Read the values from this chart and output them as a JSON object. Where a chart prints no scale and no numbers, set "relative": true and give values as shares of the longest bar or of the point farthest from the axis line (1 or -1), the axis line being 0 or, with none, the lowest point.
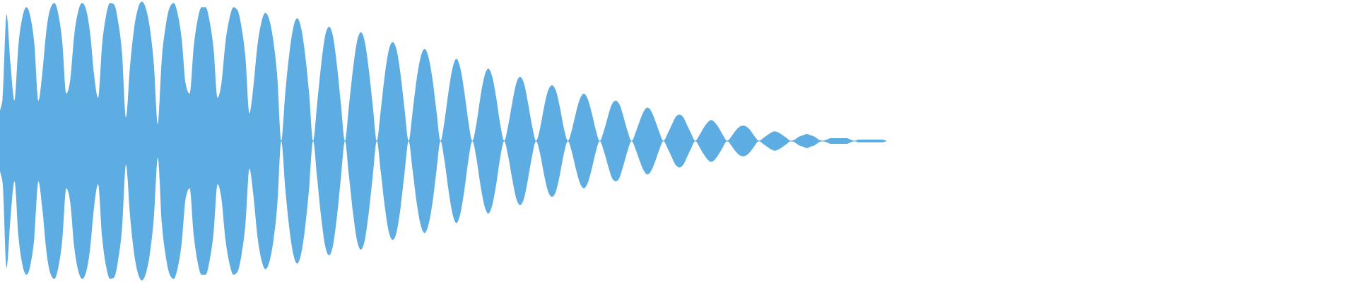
{
  "chart_data": {
    "type": "area",
    "relative": true,
    "categories": [
      null,
      null,
      null,
      null,
      null,
      null,
      null,
      null,
      null,
      null,
      null,
      null,
      null,
      null,
      null,
      null,
      null,
      null,
      null,
      null,
      null,
      null,
      null,
      null,
      null,
      null,
      null,
      null,
      null,
      null,
      null,
      null,
      null,
      null,
      null,
      null,
      null,
      null,
      null,
      null,
      null,
      null,
      null,
      null,
      null,
      null,
      null,
      null,
      null,
      null,
      null,
      null,
      null,
      null,
      null,
      null,
      null,
      null,
      null,
      null,
      null,
      null,
      null,
      null,
      null,
      null,
      null,
      null,
      null,
      null,
      null,
      null,
      null,
      null,
      null,
      null,
      null,
      null,
      null,
      null,
      null,
      null,
      null,
      null,
      null,
      null,
      null,
      null,
      null,
      null,
      null,
      null,
      null,
      null,
      null,
      null,
      null,
      null,
      null,
      null,
      null,
      null,
      null,
      null,
      null,
      null,
      null,
      null,
      null,
      null,
      null,
      null,
      null,
      null,
      null,
      null,
      null,
      null,
      null,
      null,
      null,
      null,
      null,
      null,
      null,
      null,
      null,
      null,
      null,
      null,
      null,
      null,
      null,
      null,
      null,
      null,
      null,
      null,
      null,
      null,
      null,
      null,
      null,
      null,
      null,
      null,
      null,
      null,
      null,
      null,
      null,
      null,
      null,
      null,
      null,
      null,
      null,
      null,
      null,
      null,
      null,
      null,
      null,
      null,
      null,
      null,
      null,
      null,
      null,
      null,
      null,
      null,
      null,
      null,
      null,
      null,
      null,
      null,
      null,
      null,
      null,
      null,
      null,
      null,
      null,
      null,
      null,
      null,
      null,
      null,
      null,
      null,
      null,
      null,
      null,
      null,
      null,
      null,
      null,
      null,
      null,
      null,
      null,
      null,
      null,
      null,
      null,
      null,
      null,
      null,
      null,
      null,
      null,
      null,
      null,
      null,
      null,
      null,
      null,
      null,
      null,
      null,
      null,
      null
    ],
    "series": [
      {
        "color": "#5dade2",
        "values": [
          0.2,
          0.3,
          0.91,
          0.55,
          0.29,
          0.69,
          0.89,
          0.96,
          0.89,
          0.69,
          0.29,
          0.49,
          0.79,
          0.95,
          0.99,
          0.91,
          0.71,
          0.34,
          0.44,
          0.76,
          0.93,
          0.99,
          0.94,
          0.77,
          0.47,
          0.31,
          0.69,
          0.9,
          0.99,
          0.98,
          0.86,
          0.63,
          0.17,
          0.53,
          0.8,
          0.95,
          1,
          0.95,
          0.81,
          0.55,
          0.12,
          0.59,
          0.83,
          0.96,
          0.99,
          0.91,
          0.73,
          0.41,
          0.34,
          0.67,
          0.87,
          0.96,
          0.96,
          0.86,
          0.66,
          0.31,
          0.42,
          0.71,
          0.88,
          0.96,
          0.94,
          0.82,
          0.6,
          0.2,
          0.39,
          0.68,
          0.85,
          0.92,
          0.87,
          0.72,
          0.46,
          0,
          0.34,
          0.62,
          0.81,
          0.88,
          0.81,
          0.62,
          0.34,
          0,
          0.26,
          0.54,
          0.75,
          0.82,
          0.75,
          0.54,
          0.26,
          0,
          0.25,
          0.51,
          0.71,
          0.78,
          0.71,
          0.51,
          0.25,
          0,
          0.22,
          0.47,
          0.65,
          0.71,
          0.65,
          0.47,
          0.22,
          0,
          0.21,
          0.44,
          0.6,
          0.66,
          0.6,
          0.44,
          0.21,
          0,
          0.14,
          0.35,
          0.52,
          0.59,
          0.52,
          0.35,
          0.14,
          0,
          0.12,
          0.31,
          0.46,
          0.52,
          0.46,
          0.31,
          0.12,
          0,
          0.11,
          0.27,
          0.41,
          0.46,
          0.41,
          0.27,
          0.11,
          0,
          0.09,
          0.24,
          0.36,
          0.4,
          0.36,
          0.24,
          0.09,
          0,
          0.08,
          0.2,
          0.3,
          0.34,
          0.3,
          0.2,
          0.08,
          0,
          0.07,
          0.17,
          0.26,
          0.29,
          0.26,
          0.17,
          0.07,
          0,
          0.06,
          0.14,
          0.21,
          0.24,
          0.21,
          0.14,
          0.06,
          0,
          0.05,
          0.11,
          0.17,
          0.19,
          0.17,
          0.11,
          0.05,
          0,
          0.04,
          0.09,
          0.13,
          0.15,
          0.13,
          0.09,
          0.04,
          0,
          0.03,
          0.07,
          0.1,
          0.11,
          0.1,
          0.07,
          0.03,
          0,
          0.02,
          0.04,
          0.06,
          0.07,
          0.06,
          0.04,
          0.02,
          0,
          0.01,
          0.03,
          0.04,
          0.05,
          0.04,
          0.03,
          0.01,
          0,
          0.01,
          0.02,
          0.02,
          0.02,
          0.02,
          0.02,
          0.01,
          0,
          0.01,
          0.01,
          0.01,
          0.01,
          0.01,
          0.01,
          0.01,
          0
        ]
      },
      {
        "color": "#5dade2",
        "values": [
          -0.2,
          -0.3,
          -0.91,
          -0.55,
          -0.29,
          -0.69,
          -0.89,
          -0.96,
          -0.89,
          -0.69,
          -0.29,
          -0.49,
          -0.79,
          -0.95,
          -0.99,
          -0.91,
          -0.71,
          -0.34,
          -0.44,
          -0.76,
          -0.93,
          -0.99,
          -0.94,
          -0.77,
          -0.47,
          -0.31,
          -0.69,
          -0.9,
          -0.99,
          -0.98,
          -0.86,
          -0.63,
          -0.17,
          -0.53,
          -0.8,
          -0.95,
          -1,
          -0.95,
          -0.81,
          -0.55,
          -0.12,
          -0.59,
          -0.83,
          -0.96,
          -0.99,
          -0.91,
          -0.73,
          -0.41,
          -0.34,
          -0.67,
          -0.87,
          -0.96,
          -0.96,
          -0.86,
          -0.66,
          -0.31,
          -0.42,
          -0.71,
          -0.88,
          -0.96,
          -0.94,
          -0.82,
          -0.6,
          -0.2,
          -0.39,
          -0.68,
          -0.85,
          -0.92,
          -0.87,
          -0.72,
          -0.46,
          0,
          -0.34,
          -0.62,
          -0.81,
          -0.88,
          -0.81,
          -0.62,
          -0.34,
          0,
          -0.26,
          -0.54,
          -0.75,
          -0.82,
          -0.75,
          -0.54,
          -0.26,
          0,
          -0.25,
          -0.51,
          -0.71,
          -0.78,
          -0.71,
          -0.51,
          -0.25,
          0,
          -0.22,
          -0.47,
          -0.65,
          -0.71,
          -0.65,
          -0.47,
          -0.22,
          0,
          -0.21,
          -0.44,
          -0.6,
          -0.66,
          -0.6,
          -0.44,
          -0.21,
          0,
          -0.14,
          -0.35,
          -0.52,
          -0.59,
          -0.52,
          -0.35,
          -0.14,
          0,
          -0.12,
          -0.31,
          -0.46,
          -0.52,
          -0.46,
          -0.31,
          -0.12,
          0,
          -0.11,
          -0.27,
          -0.41,
          -0.46,
          -0.41,
          -0.27,
          -0.11,
          0,
          -0.09,
          -0.24,
          -0.36,
          -0.4,
          -0.36,
          -0.24,
          -0.09,
          0,
          -0.08,
          -0.2,
          -0.3,
          -0.34,
          -0.3,
          -0.2,
          -0.08,
          0,
          -0.07,
          -0.17,
          -0.26,
          -0.29,
          -0.26,
          -0.17,
          -0.07,
          0,
          -0.06,
          -0.14,
          -0.21,
          -0.24,
          -0.21,
          -0.14,
          -0.06,
          0,
          -0.05,
          -0.11,
          -0.17,
          -0.19,
          -0.17,
          -0.11,
          -0.05,
          0,
          -0.04,
          -0.09,
          -0.13,
          -0.15,
          -0.13,
          -0.09,
          -0.04,
          0,
          -0.03,
          -0.07,
          -0.1,
          -0.11,
          -0.1,
          -0.07,
          -0.03,
          0,
          -0.02,
          -0.04,
          -0.06,
          -0.07,
          -0.06,
          -0.04,
          -0.02,
          0,
          -0.01,
          -0.03,
          -0.04,
          -0.05,
          -0.04,
          -0.03,
          -0.01,
          0,
          -0.01,
          -0.02,
          -0.02,
          -0.02,
          -0.02,
          -0.02,
          -0.01,
          0,
          -0.01,
          -0.01,
          -0.01,
          -0.01,
          -0.01,
          -0.01,
          -0.01,
          0
        ]
      }
    ],
    "ref_lines": [
      {
        "axis": "y",
        "value": 0,
        "color": "#5dade2"
      }
    ]
  }
}
